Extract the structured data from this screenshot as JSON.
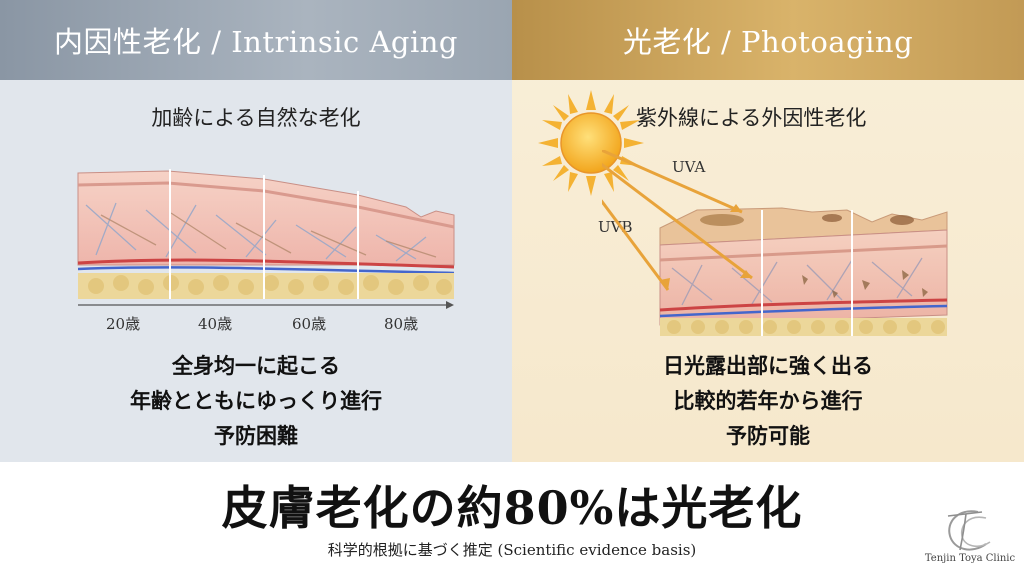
{
  "left": {
    "title": "内因性老化 / Intrinsic Aging",
    "subtitle": "加齢による自然な老化",
    "ages": [
      "20歳",
      "40歳",
      "60歳",
      "80歳"
    ],
    "points": [
      "全身均一に起こる",
      "年齢とともにゆっくり進行",
      "予防困難"
    ]
  },
  "right": {
    "title": "光老化 / Photoaging",
    "subtitle": "紫外線による外因性老化",
    "uva": "UVA",
    "uvb": "UVB",
    "points": [
      "日光露出部に強く出る",
      "比較的若年から進行",
      "予防可能"
    ]
  },
  "headline": "皮膚老化の約80%は光老化",
  "note": "科学的根拠に基づく推定 (Scientific evidence basis)",
  "clinic": "Tenjin Toya Clinic",
  "colors": {
    "intrinsic_header": "#9aa5b1",
    "photo_header": "#c9a15a",
    "skin": "#f0c0b8",
    "fat": "#ecd79a",
    "arrow": "#e8a33a"
  }
}
